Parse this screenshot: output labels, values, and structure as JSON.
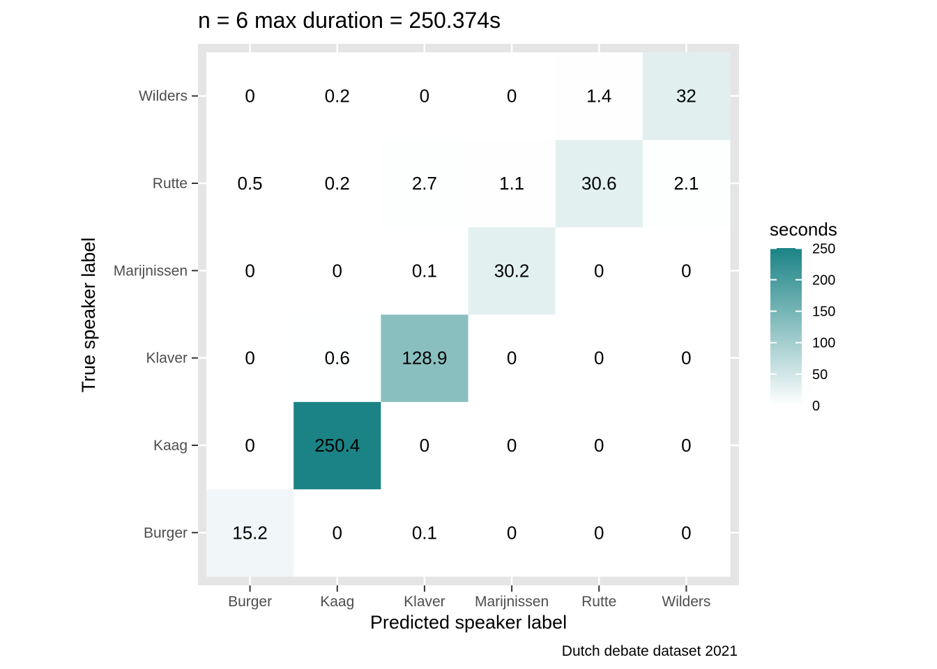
{
  "chart_data": {
    "type": "heatmap",
    "title": "n = 6 max duration = 250.374s",
    "xlabel": "Predicted speaker label",
    "ylabel": "True speaker label",
    "caption": "Dutch debate dataset 2021",
    "x_categories": [
      "Burger",
      "Kaag",
      "Klaver",
      "Marijnissen",
      "Rutte",
      "Wilders"
    ],
    "y_categories": [
      "Burger",
      "Kaag",
      "Klaver",
      "Marijnissen",
      "Rutte",
      "Wilders"
    ],
    "values": [
      [
        15.2,
        0,
        0.1,
        0,
        0,
        0
      ],
      [
        0,
        250.4,
        0,
        0,
        0,
        0
      ],
      [
        0,
        0.6,
        128.9,
        0,
        0,
        0
      ],
      [
        0,
        0,
        0.1,
        30.2,
        0,
        0
      ],
      [
        0.5,
        0.2,
        2.7,
        1.1,
        30.6,
        2.1
      ],
      [
        0,
        0.2,
        0,
        0,
        1.4,
        32
      ]
    ],
    "legend": {
      "title": "seconds",
      "ticks": [
        0,
        50,
        100,
        150,
        200,
        250
      ],
      "range": [
        0,
        250.374
      ],
      "position": "right"
    },
    "colors": {
      "low": "#ffffff",
      "high": "#1b8385",
      "panel_background": "#e5e5e5",
      "grid": "#ffffff"
    },
    "grid": true
  }
}
